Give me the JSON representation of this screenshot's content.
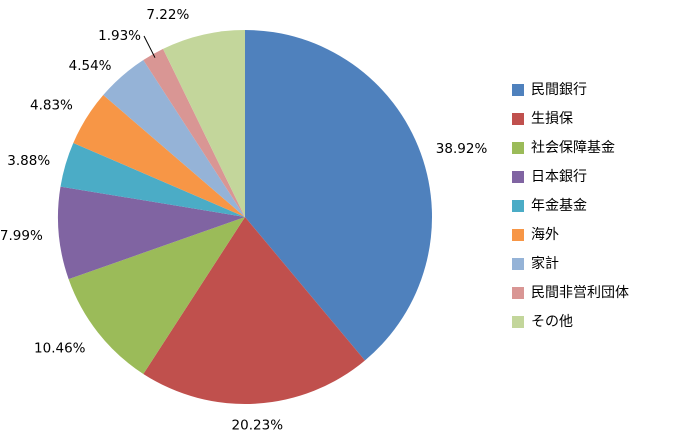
{
  "chart_data": {
    "type": "pie",
    "title": "",
    "legend_position": "right",
    "start_angle_deg": 0,
    "direction": "clockwise",
    "label_format": "percent",
    "background_color": "#ffffff",
    "slices": [
      {
        "label": "民間銀行",
        "value": 38.92,
        "display": "38.92%",
        "color": "#4F81BD"
      },
      {
        "label": "生損保",
        "value": 20.23,
        "display": "20.23%",
        "color": "#C0504D"
      },
      {
        "label": "社会保障基金",
        "value": 10.46,
        "display": "10.46%",
        "color": "#9BBB59"
      },
      {
        "label": "日本銀行",
        "value": 7.99,
        "display": "7.99%",
        "color": "#8064A2"
      },
      {
        "label": "年金基金",
        "value": 3.88,
        "display": "3.88%",
        "color": "#4BACC6"
      },
      {
        "label": "海外",
        "value": 4.83,
        "display": "4.83%",
        "color": "#F79646"
      },
      {
        "label": "家計",
        "value": 4.54,
        "display": "4.54%",
        "color": "#95B3D7"
      },
      {
        "label": "民間非営利団体",
        "value": 1.93,
        "display": "1.93%",
        "color": "#D99694"
      },
      {
        "label": "その他",
        "value": 7.22,
        "display": "7.22%",
        "color": "#C3D69B"
      }
    ]
  }
}
